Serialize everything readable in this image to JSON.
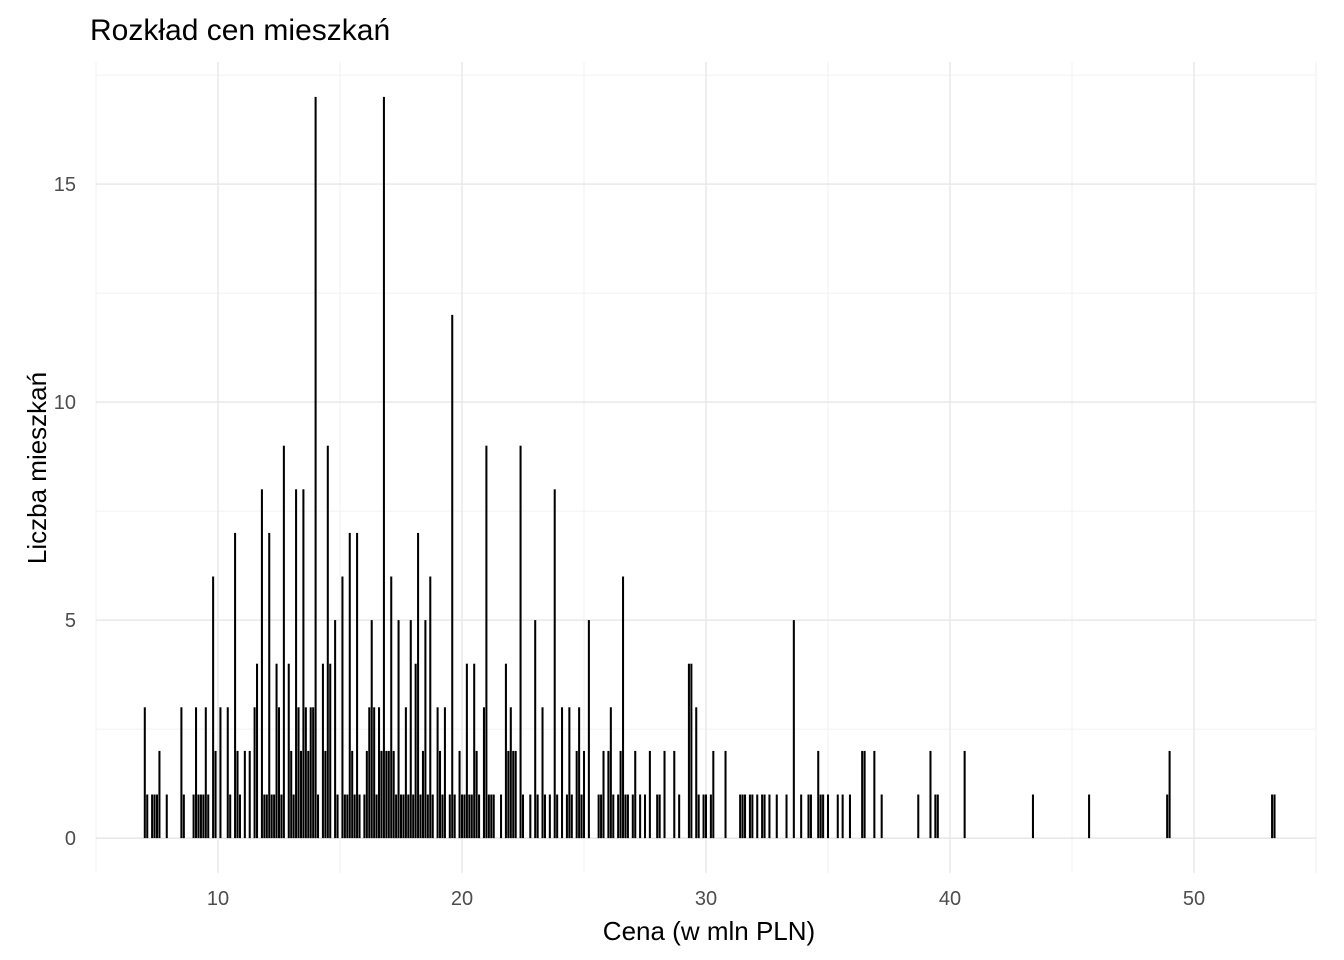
{
  "chart_data": {
    "type": "bar",
    "title": "Rozkład cen mieszkań",
    "xlabel": "Cena (w mln PLN)",
    "ylabel": "Liczba mieszkań",
    "xlim": [
      5,
      55
    ],
    "ylim": [
      -0.8,
      17.8
    ],
    "x_ticks": [
      10,
      20,
      30,
      40,
      50
    ],
    "x_tick_labels": [
      "10",
      "20",
      "30",
      "40",
      "50"
    ],
    "y_ticks": [
      0,
      5,
      10,
      15
    ],
    "y_tick_labels": [
      "0",
      "5",
      "10",
      "15"
    ],
    "grid": true,
    "legend": "none",
    "bar_color": "#000000",
    "points": [
      [
        7.0,
        3
      ],
      [
        7.1,
        1
      ],
      [
        7.3,
        1
      ],
      [
        7.4,
        1
      ],
      [
        7.5,
        1
      ],
      [
        7.6,
        2
      ],
      [
        7.9,
        1
      ],
      [
        8.5,
        3
      ],
      [
        8.6,
        1
      ],
      [
        9.0,
        1
      ],
      [
        9.1,
        3
      ],
      [
        9.2,
        1
      ],
      [
        9.3,
        1
      ],
      [
        9.4,
        1
      ],
      [
        9.5,
        3
      ],
      [
        9.6,
        1
      ],
      [
        9.8,
        6
      ],
      [
        9.9,
        2
      ],
      [
        10.1,
        3
      ],
      [
        10.4,
        3
      ],
      [
        10.5,
        1
      ],
      [
        10.7,
        7
      ],
      [
        10.8,
        2
      ],
      [
        10.9,
        1
      ],
      [
        11.1,
        2
      ],
      [
        11.3,
        2
      ],
      [
        11.5,
        3
      ],
      [
        11.6,
        4
      ],
      [
        11.8,
        8
      ],
      [
        11.9,
        1
      ],
      [
        12.0,
        1
      ],
      [
        12.1,
        7
      ],
      [
        12.2,
        1
      ],
      [
        12.3,
        1
      ],
      [
        12.4,
        4
      ],
      [
        12.5,
        3
      ],
      [
        12.6,
        1
      ],
      [
        12.7,
        9
      ],
      [
        12.9,
        4
      ],
      [
        13.0,
        2
      ],
      [
        13.1,
        1
      ],
      [
        13.2,
        8
      ],
      [
        13.3,
        3
      ],
      [
        13.4,
        2
      ],
      [
        13.5,
        8
      ],
      [
        13.6,
        3
      ],
      [
        13.7,
        2
      ],
      [
        13.8,
        3
      ],
      [
        13.9,
        3
      ],
      [
        14.0,
        17
      ],
      [
        14.1,
        1
      ],
      [
        14.3,
        4
      ],
      [
        14.4,
        2
      ],
      [
        14.5,
        9
      ],
      [
        14.6,
        4
      ],
      [
        14.8,
        5
      ],
      [
        14.9,
        1
      ],
      [
        15.1,
        6
      ],
      [
        15.2,
        1
      ],
      [
        15.3,
        1
      ],
      [
        15.4,
        7
      ],
      [
        15.5,
        2
      ],
      [
        15.6,
        1
      ],
      [
        15.7,
        7
      ],
      [
        15.8,
        1
      ],
      [
        16.0,
        1
      ],
      [
        16.1,
        2
      ],
      [
        16.2,
        3
      ],
      [
        16.3,
        5
      ],
      [
        16.4,
        3
      ],
      [
        16.5,
        1
      ],
      [
        16.6,
        3
      ],
      [
        16.7,
        2
      ],
      [
        16.8,
        17
      ],
      [
        16.9,
        2
      ],
      [
        17.0,
        2
      ],
      [
        17.1,
        6
      ],
      [
        17.2,
        2
      ],
      [
        17.3,
        1
      ],
      [
        17.4,
        5
      ],
      [
        17.5,
        1
      ],
      [
        17.6,
        1
      ],
      [
        17.7,
        3
      ],
      [
        17.8,
        1
      ],
      [
        17.9,
        5
      ],
      [
        18.0,
        1
      ],
      [
        18.1,
        4
      ],
      [
        18.2,
        7
      ],
      [
        18.3,
        1
      ],
      [
        18.4,
        2
      ],
      [
        18.5,
        5
      ],
      [
        18.6,
        1
      ],
      [
        18.7,
        6
      ],
      [
        18.8,
        1
      ],
      [
        19.0,
        3
      ],
      [
        19.1,
        2
      ],
      [
        19.2,
        1
      ],
      [
        19.3,
        3
      ],
      [
        19.5,
        1
      ],
      [
        19.6,
        12
      ],
      [
        19.7,
        1
      ],
      [
        19.9,
        2
      ],
      [
        20.0,
        1
      ],
      [
        20.1,
        1
      ],
      [
        20.2,
        4
      ],
      [
        20.3,
        1
      ],
      [
        20.4,
        1
      ],
      [
        20.5,
        4
      ],
      [
        20.6,
        2
      ],
      [
        20.7,
        1
      ],
      [
        20.9,
        3
      ],
      [
        21.0,
        9
      ],
      [
        21.1,
        1
      ],
      [
        21.2,
        1
      ],
      [
        21.3,
        1
      ],
      [
        21.6,
        1
      ],
      [
        21.8,
        4
      ],
      [
        21.9,
        2
      ],
      [
        22.0,
        3
      ],
      [
        22.1,
        2
      ],
      [
        22.2,
        2
      ],
      [
        22.4,
        9
      ],
      [
        22.5,
        1
      ],
      [
        22.8,
        1
      ],
      [
        23.0,
        5
      ],
      [
        23.1,
        1
      ],
      [
        23.3,
        3
      ],
      [
        23.4,
        1
      ],
      [
        23.6,
        1
      ],
      [
        23.8,
        8
      ],
      [
        23.9,
        1
      ],
      [
        24.1,
        3
      ],
      [
        24.3,
        1
      ],
      [
        24.4,
        3
      ],
      [
        24.5,
        1
      ],
      [
        24.7,
        2
      ],
      [
        24.8,
        3
      ],
      [
        24.9,
        1
      ],
      [
        25.0,
        2
      ],
      [
        25.2,
        5
      ],
      [
        25.6,
        1
      ],
      [
        25.7,
        1
      ],
      [
        25.8,
        2
      ],
      [
        26.0,
        2
      ],
      [
        26.1,
        3
      ],
      [
        26.2,
        1
      ],
      [
        26.4,
        1
      ],
      [
        26.5,
        2
      ],
      [
        26.6,
        6
      ],
      [
        26.7,
        1
      ],
      [
        26.8,
        1
      ],
      [
        27.0,
        1
      ],
      [
        27.1,
        2
      ],
      [
        27.3,
        1
      ],
      [
        27.5,
        1
      ],
      [
        27.7,
        2
      ],
      [
        28.0,
        1
      ],
      [
        28.1,
        1
      ],
      [
        28.3,
        2
      ],
      [
        28.7,
        2
      ],
      [
        28.9,
        1
      ],
      [
        29.3,
        4
      ],
      [
        29.4,
        4
      ],
      [
        29.6,
        3
      ],
      [
        29.7,
        1
      ],
      [
        29.9,
        1
      ],
      [
        30.0,
        1
      ],
      [
        30.2,
        1
      ],
      [
        30.3,
        2
      ],
      [
        30.8,
        2
      ],
      [
        31.4,
        1
      ],
      [
        31.5,
        1
      ],
      [
        31.6,
        1
      ],
      [
        31.8,
        1
      ],
      [
        31.9,
        1
      ],
      [
        32.1,
        1
      ],
      [
        32.3,
        1
      ],
      [
        32.4,
        1
      ],
      [
        32.6,
        1
      ],
      [
        32.9,
        1
      ],
      [
        33.3,
        1
      ],
      [
        33.6,
        5
      ],
      [
        33.9,
        1
      ],
      [
        34.2,
        1
      ],
      [
        34.3,
        1
      ],
      [
        34.6,
        2
      ],
      [
        34.7,
        1
      ],
      [
        34.8,
        1
      ],
      [
        35.0,
        1
      ],
      [
        35.4,
        1
      ],
      [
        35.6,
        1
      ],
      [
        35.9,
        1
      ],
      [
        36.4,
        2
      ],
      [
        36.5,
        2
      ],
      [
        36.9,
        2
      ],
      [
        37.2,
        1
      ],
      [
        38.7,
        1
      ],
      [
        39.2,
        2
      ],
      [
        39.4,
        1
      ],
      [
        39.5,
        1
      ],
      [
        40.6,
        2
      ],
      [
        43.4,
        1
      ],
      [
        45.7,
        1
      ],
      [
        48.9,
        1
      ],
      [
        49.0,
        2
      ],
      [
        53.2,
        1
      ],
      [
        53.3,
        1
      ]
    ]
  }
}
